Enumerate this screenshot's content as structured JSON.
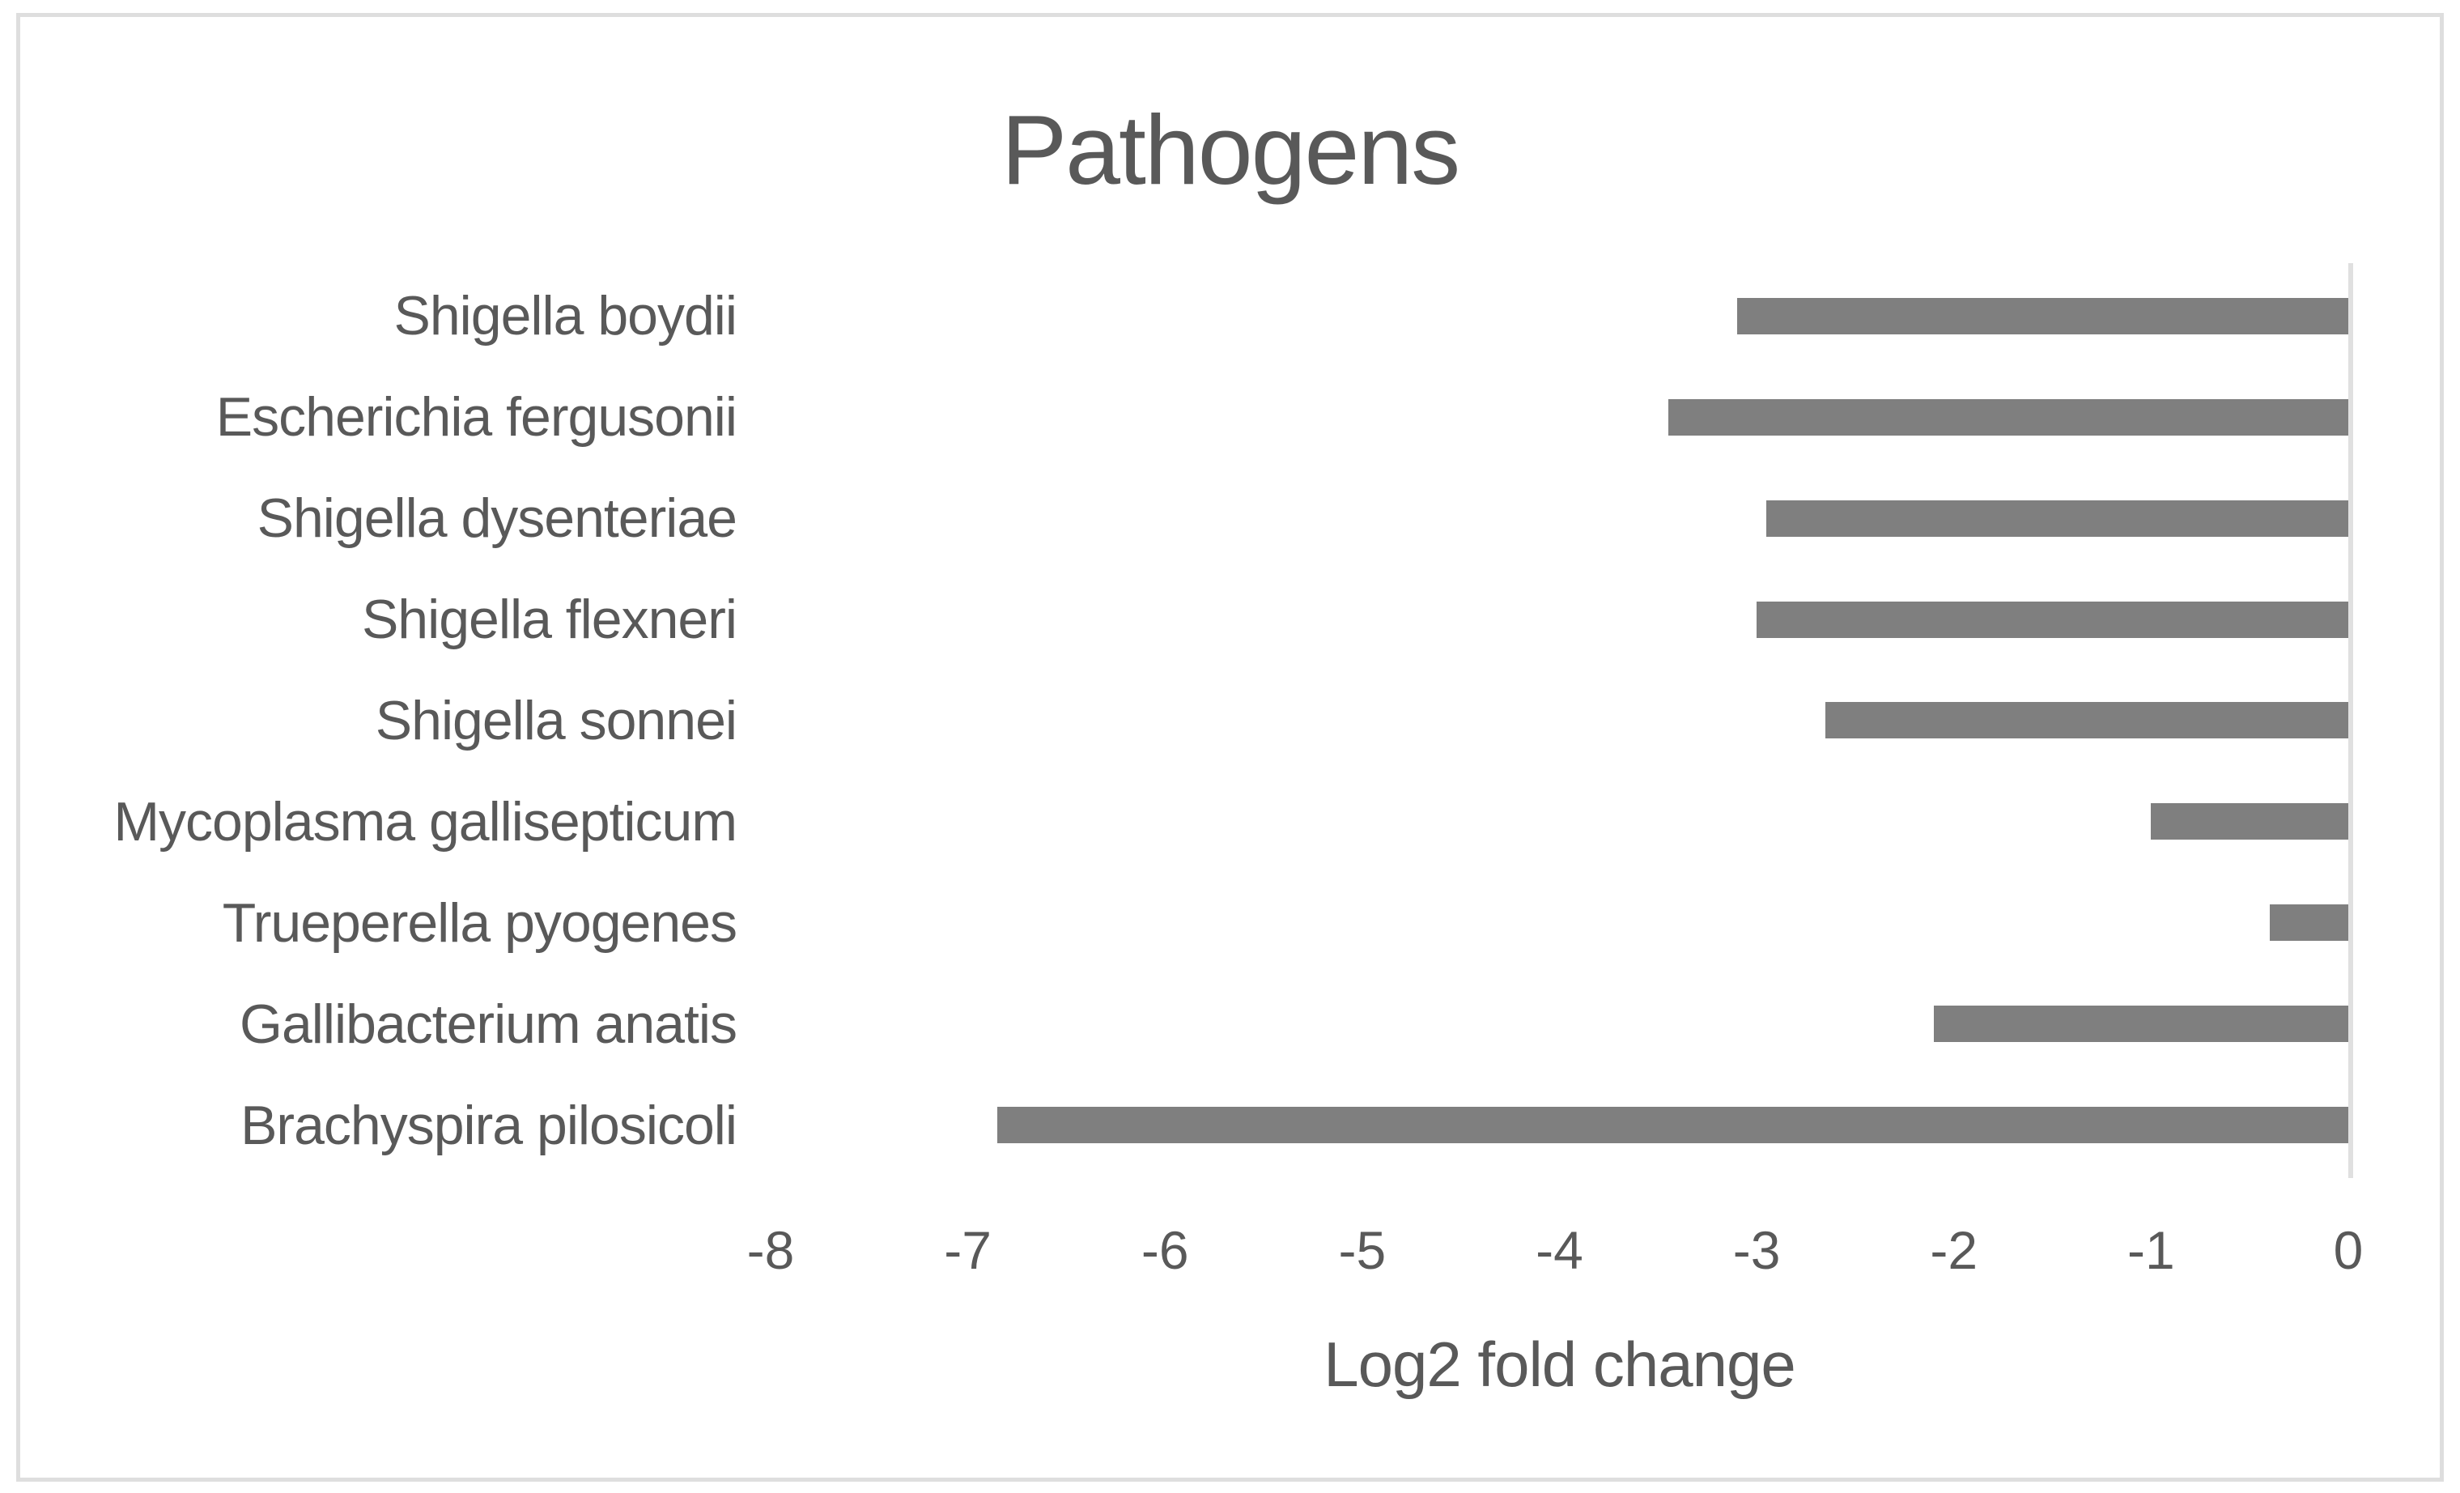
{
  "chart_data": {
    "type": "bar",
    "orientation": "horizontal",
    "title": "Pathogens",
    "xlabel": "Log2 fold change",
    "categories": [
      "Shigella boydii",
      "Escherichia fergusonii",
      "Shigella dysenteriae",
      "Shigella flexneri",
      "Shigella sonnei",
      "Mycoplasma gallisepticum",
      "Trueperella pyogenes",
      "Gallibacterium anatis",
      "Brachyspira pilosicoli"
    ],
    "values": [
      -3.1,
      -3.45,
      -2.95,
      -3.0,
      -2.65,
      -1.0,
      -0.4,
      -2.1,
      -6.85
    ],
    "xlim": [
      -8,
      0
    ],
    "xticks": [
      -8,
      -7,
      -6,
      -5,
      -4,
      -3,
      -2,
      -1,
      0
    ],
    "grid": "off",
    "legend": "none",
    "bar_color": "#7f7f7f",
    "axis_line_color": "#e0e0e0",
    "text_color": "#595959"
  }
}
